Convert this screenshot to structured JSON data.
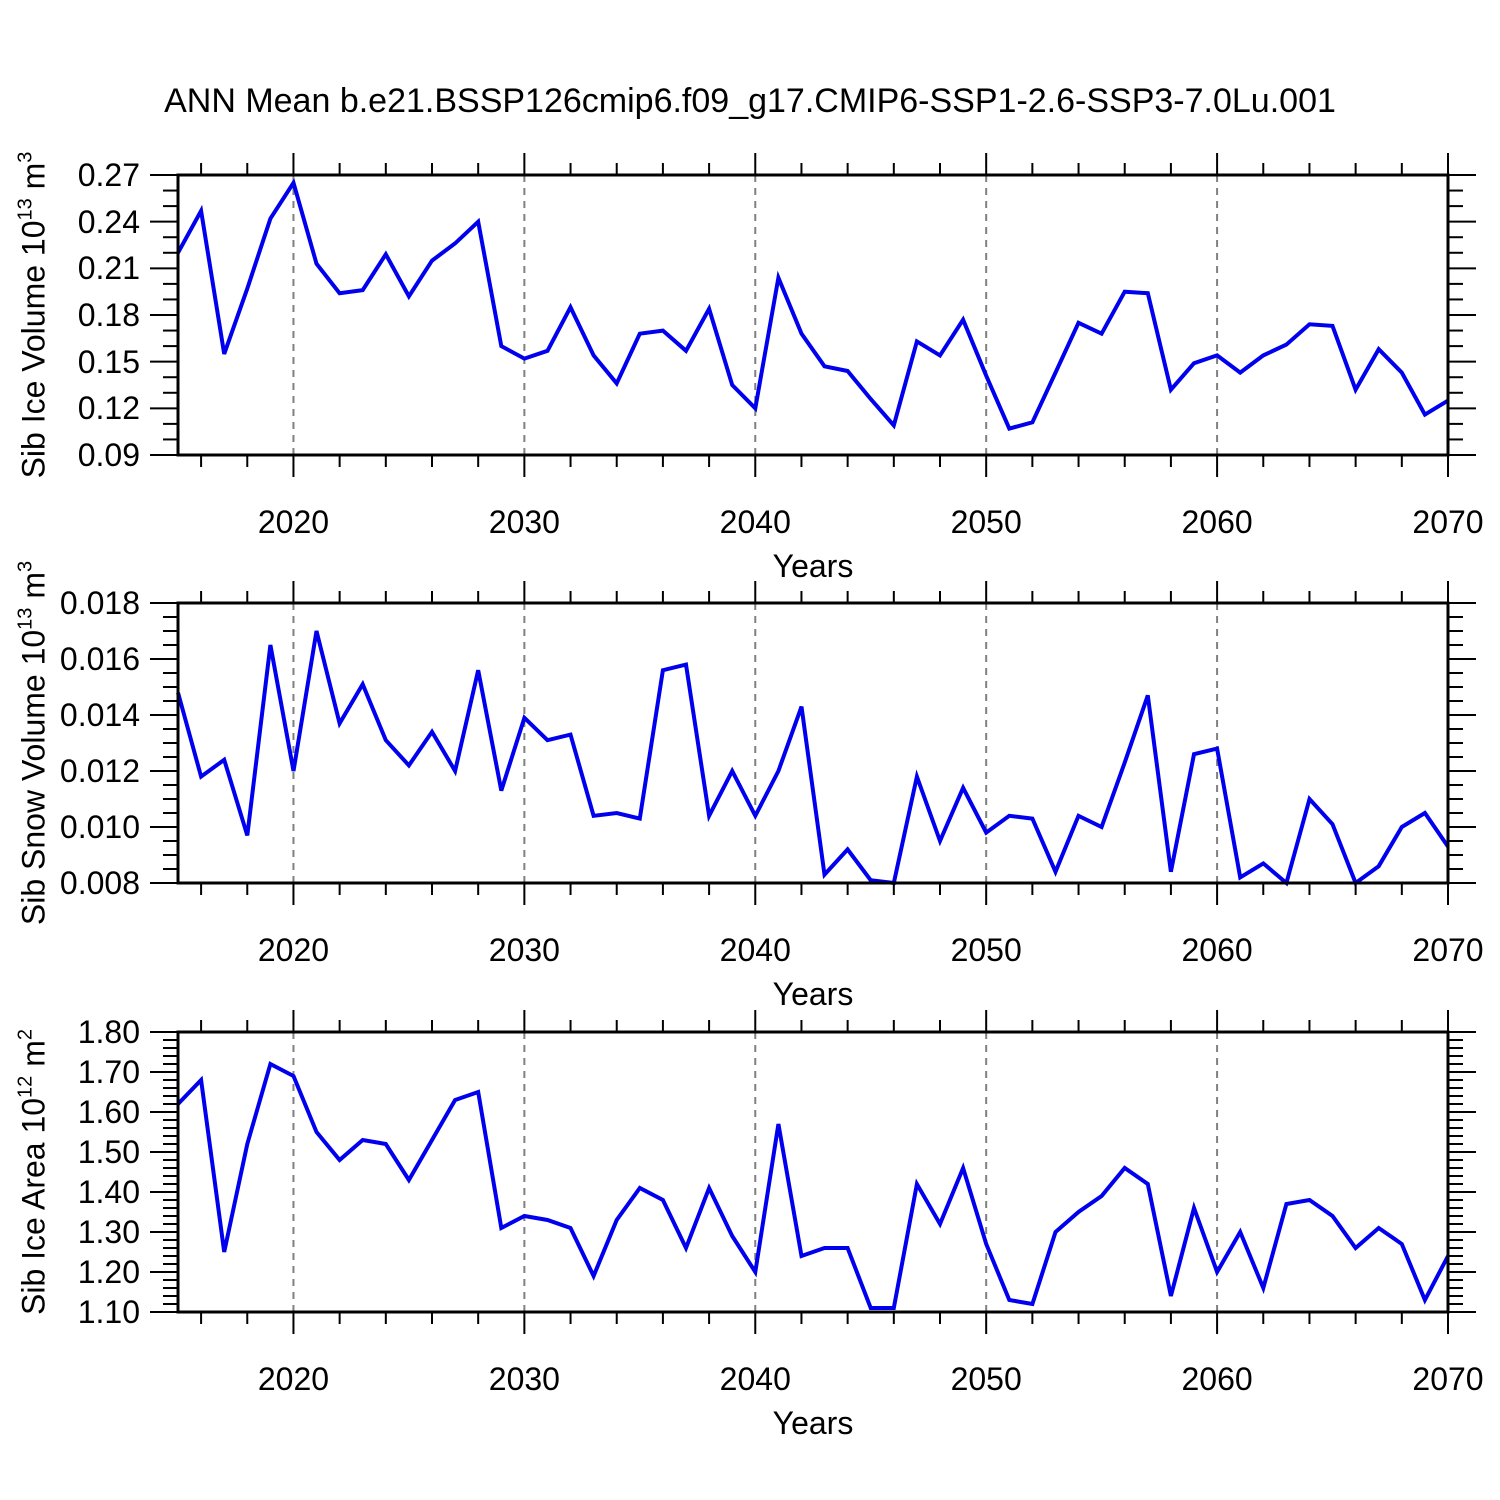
{
  "title": "ANN Mean b.e21.BSSP126cmip6.f09_g17.CMIP6-SSP1-2.6-SSP3-7.0Lu.001",
  "colors": {
    "line": "#0000ee",
    "axis": "#000000",
    "grid": "#808080",
    "background": "#ffffff",
    "text": "#000000"
  },
  "chart_data": [
    {
      "id": "sib-ice-volume",
      "type": "line",
      "ylabel": "Sib Ice Volume 10^13 m^3",
      "ylabel_parts": [
        {
          "text": "Sib Ice Volume 10"
        },
        {
          "text": "13",
          "sup": true
        },
        {
          "text": " m"
        },
        {
          "text": "3",
          "sup": true
        }
      ],
      "xlabel": "Years",
      "legend": "none",
      "grid_x": [
        2020,
        2030,
        2040,
        2050,
        2060
      ],
      "xlim": [
        2015,
        2070
      ],
      "ylim": [
        0.09,
        0.27
      ],
      "yticks": [
        0.09,
        0.12,
        0.15,
        0.18,
        0.21,
        0.24,
        0.27
      ],
      "ytick_labels": [
        "0.09",
        "0.12",
        "0.15",
        "0.18",
        "0.21",
        "0.24",
        "0.27"
      ],
      "y_minor_step": 0.01,
      "xticks": [
        2020,
        2030,
        2040,
        2050,
        2060,
        2070
      ],
      "xtick_labels": [
        "2020",
        "2030",
        "2040",
        "2050",
        "2060",
        "2070"
      ],
      "x_minor_step": 2,
      "x": [
        2015,
        2016,
        2017,
        2018,
        2019,
        2020,
        2021,
        2022,
        2023,
        2024,
        2025,
        2026,
        2027,
        2028,
        2029,
        2030,
        2031,
        2032,
        2033,
        2034,
        2035,
        2036,
        2037,
        2038,
        2039,
        2040,
        2041,
        2042,
        2043,
        2044,
        2045,
        2046,
        2047,
        2048,
        2049,
        2050,
        2051,
        2052,
        2053,
        2054,
        2055,
        2056,
        2057,
        2058,
        2059,
        2060,
        2061,
        2062,
        2063,
        2064,
        2065,
        2066,
        2067,
        2068,
        2069,
        2070
      ],
      "values": [
        0.22,
        0.247,
        0.155,
        0.197,
        0.242,
        0.265,
        0.213,
        0.194,
        0.196,
        0.219,
        0.192,
        0.215,
        0.226,
        0.24,
        0.16,
        0.152,
        0.157,
        0.185,
        0.154,
        0.136,
        0.168,
        0.17,
        0.157,
        0.184,
        0.135,
        0.12,
        0.204,
        0.168,
        0.147,
        0.144,
        0.126,
        0.109,
        0.163,
        0.154,
        0.177,
        0.141,
        0.107,
        0.111,
        0.143,
        0.175,
        0.168,
        0.195,
        0.194,
        0.132,
        0.149,
        0.154,
        0.143,
        0.154,
        0.161,
        0.174,
        0.173,
        0.132,
        0.158,
        0.143,
        0.116,
        0.125
      ]
    },
    {
      "id": "sib-snow-volume",
      "type": "line",
      "ylabel": "Sib Snow Volume 10^13 m^3",
      "ylabel_parts": [
        {
          "text": "Sib Snow Volume 10"
        },
        {
          "text": "13",
          "sup": true
        },
        {
          "text": " m"
        },
        {
          "text": "3",
          "sup": true
        }
      ],
      "xlabel": "Years",
      "legend": "none",
      "grid_x": [
        2020,
        2030,
        2040,
        2050,
        2060
      ],
      "xlim": [
        2015,
        2070
      ],
      "ylim": [
        0.008,
        0.018
      ],
      "yticks": [
        0.008,
        0.01,
        0.012,
        0.014,
        0.016,
        0.018
      ],
      "ytick_labels": [
        "0.008",
        "0.010",
        "0.012",
        "0.014",
        "0.016",
        "0.018"
      ],
      "y_minor_step": 0.0005,
      "xticks": [
        2020,
        2030,
        2040,
        2050,
        2060,
        2070
      ],
      "xtick_labels": [
        "2020",
        "2030",
        "2040",
        "2050",
        "2060",
        "2070"
      ],
      "x_minor_step": 2,
      "x": [
        2015,
        2016,
        2017,
        2018,
        2019,
        2020,
        2021,
        2022,
        2023,
        2024,
        2025,
        2026,
        2027,
        2028,
        2029,
        2030,
        2031,
        2032,
        2033,
        2034,
        2035,
        2036,
        2037,
        2038,
        2039,
        2040,
        2041,
        2042,
        2043,
        2044,
        2045,
        2046,
        2047,
        2048,
        2049,
        2050,
        2051,
        2052,
        2053,
        2054,
        2055,
        2056,
        2057,
        2058,
        2059,
        2060,
        2061,
        2062,
        2063,
        2064,
        2065,
        2066,
        2067,
        2068,
        2069,
        2070
      ],
      "values": [
        0.0148,
        0.0118,
        0.0124,
        0.0097,
        0.0165,
        0.012,
        0.017,
        0.0137,
        0.0151,
        0.0131,
        0.0122,
        0.0134,
        0.012,
        0.0156,
        0.0113,
        0.0139,
        0.0131,
        0.0133,
        0.0104,
        0.0105,
        0.0103,
        0.0156,
        0.0158,
        0.0104,
        0.012,
        0.0104,
        0.012,
        0.0143,
        0.0083,
        0.0092,
        0.0081,
        0.008,
        0.0118,
        0.0095,
        0.0114,
        0.0098,
        0.0104,
        0.0103,
        0.0084,
        0.0104,
        0.01,
        0.0123,
        0.0147,
        0.0084,
        0.0126,
        0.0128,
        0.0082,
        0.0087,
        0.008,
        0.011,
        0.0101,
        0.008,
        0.0086,
        0.01,
        0.0105,
        0.0093
      ]
    },
    {
      "id": "sib-ice-area",
      "type": "line",
      "ylabel": "Sib Ice Area 10^12 m^2",
      "ylabel_parts": [
        {
          "text": "Sib Ice Area 10"
        },
        {
          "text": "12",
          "sup": true
        },
        {
          "text": " m"
        },
        {
          "text": "2",
          "sup": true
        }
      ],
      "xlabel": "Years",
      "legend": "none",
      "grid_x": [
        2020,
        2030,
        2040,
        2050,
        2060
      ],
      "xlim": [
        2015,
        2070
      ],
      "ylim": [
        1.1,
        1.8
      ],
      "yticks": [
        1.1,
        1.2,
        1.3,
        1.4,
        1.5,
        1.6,
        1.7,
        1.8
      ],
      "ytick_labels": [
        "1.10",
        "1.20",
        "1.30",
        "1.40",
        "1.50",
        "1.60",
        "1.70",
        "1.80"
      ],
      "y_minor_step": 0.02,
      "xticks": [
        2020,
        2030,
        2040,
        2050,
        2060,
        2070
      ],
      "xtick_labels": [
        "2020",
        "2030",
        "2040",
        "2050",
        "2060",
        "2070"
      ],
      "x_minor_step": 2,
      "x": [
        2015,
        2016,
        2017,
        2018,
        2019,
        2020,
        2021,
        2022,
        2023,
        2024,
        2025,
        2026,
        2027,
        2028,
        2029,
        2030,
        2031,
        2032,
        2033,
        2034,
        2035,
        2036,
        2037,
        2038,
        2039,
        2040,
        2041,
        2042,
        2043,
        2044,
        2045,
        2046,
        2047,
        2048,
        2049,
        2050,
        2051,
        2052,
        2053,
        2054,
        2055,
        2056,
        2057,
        2058,
        2059,
        2060,
        2061,
        2062,
        2063,
        2064,
        2065,
        2066,
        2067,
        2068,
        2069,
        2070
      ],
      "values": [
        1.62,
        1.68,
        1.25,
        1.52,
        1.72,
        1.69,
        1.55,
        1.48,
        1.53,
        1.52,
        1.43,
        1.53,
        1.63,
        1.65,
        1.31,
        1.34,
        1.33,
        1.31,
        1.19,
        1.33,
        1.41,
        1.38,
        1.26,
        1.41,
        1.29,
        1.2,
        1.57,
        1.24,
        1.26,
        1.26,
        1.11,
        1.11,
        1.42,
        1.32,
        1.46,
        1.27,
        1.13,
        1.12,
        1.3,
        1.35,
        1.39,
        1.46,
        1.42,
        1.14,
        1.36,
        1.2,
        1.3,
        1.16,
        1.37,
        1.38,
        1.34,
        1.26,
        1.31,
        1.27,
        1.13,
        1.24
      ]
    }
  ]
}
